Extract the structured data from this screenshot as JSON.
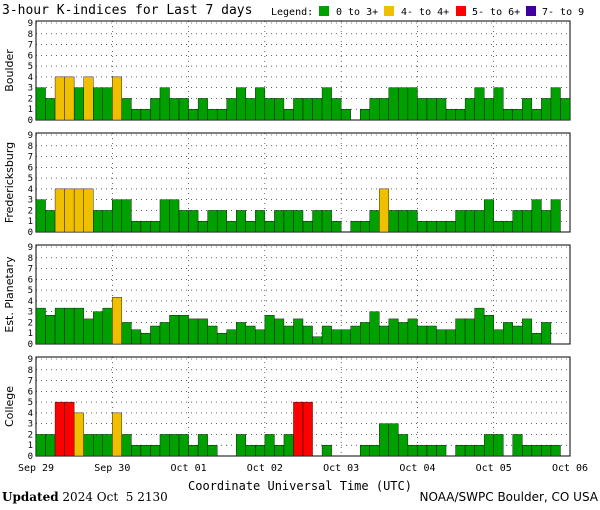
{
  "title": "3-hour K-indices for Last 7 days",
  "legend": {
    "label": "Legend:",
    "items": [
      {
        "text": "0 to 3+",
        "color": "#00a000"
      },
      {
        "text": "4- to 4+",
        "color": "#f0c000"
      },
      {
        "text": "5- to 6+",
        "color": "#ff0000"
      },
      {
        "text": "7- to 9",
        "color": "#4000a0"
      }
    ]
  },
  "footer": {
    "updated_label": "Updated",
    "updated_value": "2024 Oct  5 2130",
    "source": "NOAA/SWPC Boulder, CO USA"
  },
  "chart_data": {
    "type": "bar",
    "xlabel": "Coordinate Universal Time (UTC)",
    "x_ticks": [
      "Sep 29",
      "Sep 30",
      "Oct 01",
      "Oct 02",
      "Oct 03",
      "Oct 04",
      "Oct 05",
      "Oct 06"
    ],
    "ylim": [
      0,
      9
    ],
    "y_ticks": [
      0,
      1,
      2,
      3,
      4,
      5,
      6,
      7,
      8,
      9
    ],
    "grid": true,
    "panels": [
      {
        "name": "Boulder",
        "values": [
          3,
          2,
          4,
          4,
          3,
          4,
          3,
          3,
          4,
          2,
          1,
          1,
          2,
          3,
          2,
          2,
          1,
          2,
          1,
          1,
          2,
          3,
          2,
          3,
          2,
          2,
          1,
          2,
          2,
          2,
          3,
          2,
          1,
          0,
          1,
          2,
          2,
          3,
          3,
          3,
          2,
          2,
          2,
          1,
          1,
          2,
          3,
          2,
          3,
          1,
          1,
          2,
          1,
          2,
          3,
          2,
          0
        ]
      },
      {
        "name": "Fredericksburg",
        "values": [
          3,
          2,
          4,
          4,
          4,
          4,
          2,
          2,
          3,
          3,
          1,
          1,
          1,
          3,
          3,
          2,
          2,
          1,
          2,
          2,
          1,
          2,
          1,
          2,
          1,
          2,
          2,
          2,
          1,
          2,
          2,
          1,
          0,
          1,
          1,
          2,
          4,
          2,
          2,
          2,
          1,
          1,
          1,
          1,
          2,
          2,
          2,
          3,
          1,
          1,
          2,
          2,
          3,
          2,
          3,
          0
        ]
      },
      {
        "name": "Est. Planetary",
        "values": [
          3.33,
          2.67,
          3.33,
          3.33,
          3.33,
          2.33,
          3.0,
          3.33,
          4.33,
          2.0,
          1.33,
          1.0,
          1.67,
          2.0,
          2.67,
          2.67,
          2.33,
          2.33,
          1.67,
          1.0,
          1.33,
          2.0,
          1.67,
          1.33,
          2.67,
          2.33,
          1.67,
          2.33,
          1.67,
          0.67,
          1.67,
          1.33,
          1.33,
          1.67,
          2.0,
          3.0,
          1.67,
          2.33,
          2.0,
          2.33,
          1.67,
          1.67,
          1.33,
          1.33,
          2.33,
          2.33,
          3.33,
          2.67,
          1.33,
          2.0,
          1.67,
          2.33,
          1.0,
          2.0
        ]
      },
      {
        "name": "College",
        "values": [
          2,
          2,
          5,
          5,
          4,
          2,
          2,
          2,
          4,
          2,
          1,
          1,
          1,
          2,
          2,
          2,
          1,
          2,
          1,
          0,
          0,
          2,
          1,
          1,
          2,
          1,
          2,
          5,
          5,
          0,
          1,
          0,
          0,
          0,
          1,
          1,
          3,
          3,
          2,
          1,
          1,
          1,
          1,
          0,
          1,
          1,
          1,
          2,
          2,
          0,
          2,
          1,
          1,
          1,
          1,
          0
        ]
      }
    ]
  }
}
